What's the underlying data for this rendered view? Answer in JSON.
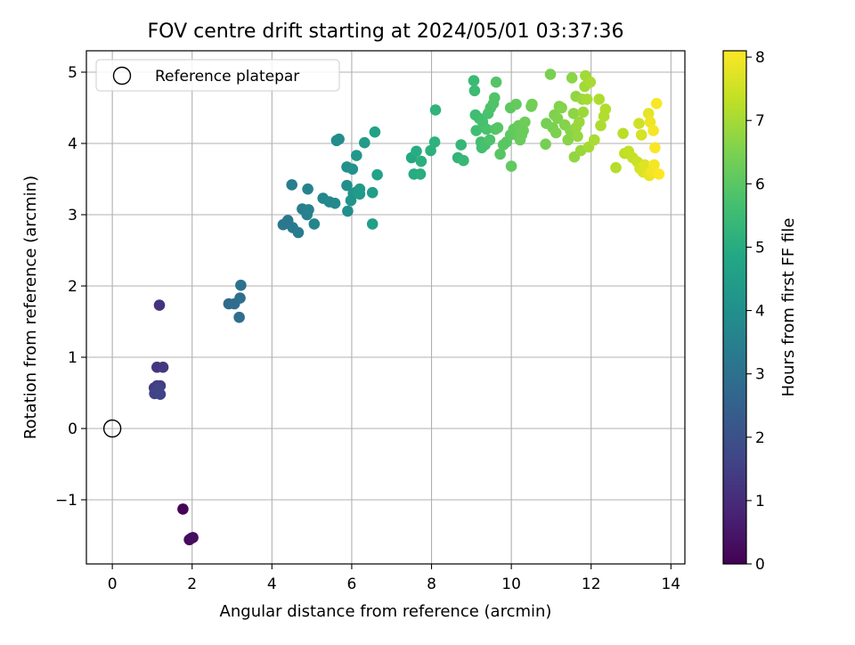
{
  "chart_data": {
    "type": "scatter",
    "title": "FOV centre drift starting at 2024/05/01 03:37:36",
    "xlabel": "Angular distance from reference (arcmin)",
    "ylabel": "Rotation from reference (arcmin)",
    "xlim": [
      -0.65,
      14.35
    ],
    "ylim": [
      -1.9,
      5.3
    ],
    "xticks": [
      0,
      2,
      4,
      6,
      8,
      10,
      12,
      14
    ],
    "xtick_labels": [
      "0",
      "2",
      "4",
      "6",
      "8",
      "10",
      "12",
      "14"
    ],
    "yticks": [
      -1,
      0,
      1,
      2,
      3,
      4,
      5
    ],
    "ytick_labels": [
      "−1",
      "0",
      "1",
      "2",
      "3",
      "4",
      "5"
    ],
    "grid": true,
    "legend": {
      "position": "top-left",
      "entries": [
        "Reference platepar"
      ]
    },
    "colorbar": {
      "label": "Hours from first FF file",
      "min": 0,
      "max": 8.1,
      "ticks": [
        0,
        1,
        2,
        3,
        4,
        5,
        6,
        7,
        8
      ],
      "tick_labels": [
        "0",
        "1",
        "2",
        "3",
        "4",
        "5",
        "6",
        "7",
        "8"
      ],
      "colormap": "viridis"
    },
    "reference_point": {
      "x": 0,
      "y": 0
    },
    "points": [
      [
        1.77,
        -1.13,
        0.1
      ],
      [
        1.93,
        -1.56,
        0.2
      ],
      [
        1.98,
        -1.54,
        0.25
      ],
      [
        2.02,
        -1.53,
        0.3
      ],
      [
        1.18,
        1.73,
        1.2
      ],
      [
        1.12,
        0.86,
        1.3
      ],
      [
        1.27,
        0.86,
        1.35
      ],
      [
        1.05,
        0.57,
        1.4
      ],
      [
        1.12,
        0.6,
        1.45
      ],
      [
        1.2,
        0.6,
        1.5
      ],
      [
        1.06,
        0.49,
        1.55
      ],
      [
        1.2,
        0.48,
        1.6
      ],
      [
        1.13,
        0.55,
        1.65
      ],
      [
        2.92,
        1.75,
        2.8
      ],
      [
        3.06,
        1.75,
        2.85
      ],
      [
        3.18,
        1.56,
        2.9
      ],
      [
        3.2,
        1.83,
        2.95
      ],
      [
        3.22,
        2.01,
        3.0
      ],
      [
        4.28,
        2.86,
        3.2
      ],
      [
        4.4,
        2.92,
        3.25
      ],
      [
        4.52,
        2.82,
        3.3
      ],
      [
        4.66,
        2.75,
        3.35
      ],
      [
        4.5,
        3.42,
        3.4
      ],
      [
        4.76,
        3.08,
        3.45
      ],
      [
        4.88,
        3.0,
        3.5
      ],
      [
        4.92,
        3.07,
        3.55
      ],
      [
        4.9,
        3.36,
        3.6
      ],
      [
        5.06,
        2.87,
        3.65
      ],
      [
        5.28,
        3.23,
        3.7
      ],
      [
        5.44,
        3.18,
        3.75
      ],
      [
        5.58,
        3.16,
        3.8
      ],
      [
        5.62,
        4.04,
        3.85
      ],
      [
        5.68,
        4.06,
        3.9
      ],
      [
        5.88,
        3.41,
        3.95
      ],
      [
        5.9,
        3.05,
        4.0
      ],
      [
        5.88,
        3.67,
        4.05
      ],
      [
        6.02,
        3.64,
        4.1
      ],
      [
        5.98,
        3.2,
        4.15
      ],
      [
        6.04,
        3.3,
        4.2
      ],
      [
        6.12,
        3.32,
        4.25
      ],
      [
        6.12,
        3.83,
        4.3
      ],
      [
        6.2,
        3.36,
        4.35
      ],
      [
        6.2,
        3.29,
        4.4
      ],
      [
        6.32,
        4.01,
        4.45
      ],
      [
        6.52,
        3.31,
        4.5
      ],
      [
        6.52,
        2.87,
        4.55
      ],
      [
        6.58,
        4.16,
        4.6
      ],
      [
        6.64,
        3.56,
        4.65
      ],
      [
        7.5,
        3.8,
        4.9
      ],
      [
        7.56,
        3.57,
        4.95
      ],
      [
        7.62,
        3.89,
        5.0
      ],
      [
        7.72,
        3.57,
        5.05
      ],
      [
        7.74,
        3.75,
        5.1
      ],
      [
        7.98,
        3.9,
        5.15
      ],
      [
        8.08,
        4.02,
        5.2
      ],
      [
        8.1,
        4.47,
        5.25
      ],
      [
        8.66,
        3.8,
        5.3
      ],
      [
        8.74,
        3.98,
        5.35
      ],
      [
        8.8,
        3.76,
        5.4
      ],
      [
        9.06,
        4.88,
        5.45
      ],
      [
        9.08,
        4.74,
        5.5
      ],
      [
        9.1,
        4.4,
        5.55
      ],
      [
        9.12,
        4.18,
        5.6
      ],
      [
        9.2,
        4.35,
        5.6
      ],
      [
        9.24,
        4.02,
        5.65
      ],
      [
        9.26,
        3.94,
        5.65
      ],
      [
        9.28,
        4.3,
        5.7
      ],
      [
        9.34,
        3.98,
        5.7
      ],
      [
        9.38,
        4.2,
        5.75
      ],
      [
        9.42,
        4.42,
        5.75
      ],
      [
        9.46,
        4.05,
        5.8
      ],
      [
        9.48,
        4.5,
        5.8
      ],
      [
        9.55,
        4.56,
        5.85
      ],
      [
        9.58,
        4.64,
        5.85
      ],
      [
        9.6,
        4.2,
        5.9
      ],
      [
        9.62,
        4.86,
        5.9
      ],
      [
        9.66,
        4.22,
        5.95
      ],
      [
        9.72,
        3.85,
        5.95
      ],
      [
        9.8,
        3.98,
        6.0
      ],
      [
        9.88,
        4.02,
        6.0
      ],
      [
        9.98,
        4.12,
        6.05
      ],
      [
        9.98,
        4.5,
        6.05
      ],
      [
        10.0,
        3.68,
        6.1
      ],
      [
        10.06,
        4.2,
        6.1
      ],
      [
        10.12,
        4.55,
        6.15
      ],
      [
        10.14,
        4.12,
        6.15
      ],
      [
        10.18,
        4.25,
        6.2
      ],
      [
        10.22,
        4.05,
        6.2
      ],
      [
        10.26,
        4.12,
        6.25
      ],
      [
        10.3,
        4.18,
        6.25
      ],
      [
        10.34,
        4.3,
        6.3
      ],
      [
        10.5,
        4.52,
        6.3
      ],
      [
        10.52,
        4.55,
        6.35
      ],
      [
        10.86,
        3.99,
        6.4
      ],
      [
        10.88,
        4.28,
        6.4
      ],
      [
        10.98,
        4.97,
        6.45
      ],
      [
        11.04,
        4.22,
        6.45
      ],
      [
        11.08,
        4.4,
        6.5
      ],
      [
        11.12,
        4.15,
        6.5
      ],
      [
        11.16,
        4.35,
        6.55
      ],
      [
        11.2,
        4.52,
        6.55
      ],
      [
        11.26,
        4.5,
        6.6
      ],
      [
        11.34,
        4.26,
        6.6
      ],
      [
        11.42,
        4.05,
        6.65
      ],
      [
        11.48,
        4.18,
        6.65
      ],
      [
        11.52,
        4.92,
        6.7
      ],
      [
        11.56,
        4.42,
        6.7
      ],
      [
        11.58,
        3.81,
        6.75
      ],
      [
        11.62,
        4.66,
        6.75
      ],
      [
        11.62,
        4.22,
        6.8
      ],
      [
        11.66,
        4.1,
        6.8
      ],
      [
        11.7,
        4.3,
        6.85
      ],
      [
        11.74,
        3.9,
        6.85
      ],
      [
        11.78,
        4.62,
        6.9
      ],
      [
        11.8,
        4.44,
        6.9
      ],
      [
        11.84,
        4.8,
        6.95
      ],
      [
        11.86,
        4.95,
        6.95
      ],
      [
        11.9,
        4.62,
        7.0
      ],
      [
        11.94,
        3.95,
        7.0
      ],
      [
        11.98,
        4.86,
        7.05
      ],
      [
        12.08,
        4.05,
        7.05
      ],
      [
        12.2,
        4.62,
        7.1
      ],
      [
        12.24,
        4.25,
        7.1
      ],
      [
        12.32,
        4.38,
        7.15
      ],
      [
        12.36,
        4.48,
        7.15
      ],
      [
        12.62,
        3.66,
        7.2
      ],
      [
        12.8,
        4.14,
        7.25
      ],
      [
        12.84,
        3.86,
        7.3
      ],
      [
        12.94,
        3.89,
        7.35
      ],
      [
        13.04,
        3.8,
        7.4
      ],
      [
        13.16,
        3.74,
        7.45
      ],
      [
        13.2,
        4.28,
        7.5
      ],
      [
        13.22,
        3.65,
        7.55
      ],
      [
        13.26,
        4.12,
        7.6
      ],
      [
        13.3,
        3.6,
        7.65
      ],
      [
        13.34,
        3.7,
        7.7
      ],
      [
        13.4,
        3.58,
        7.75
      ],
      [
        13.44,
        4.42,
        7.8
      ],
      [
        13.46,
        3.55,
        7.85
      ],
      [
        13.48,
        4.3,
        7.9
      ],
      [
        13.52,
        3.6,
        7.95
      ],
      [
        13.56,
        4.18,
        8.0
      ],
      [
        13.58,
        3.7,
        8.0
      ],
      [
        13.6,
        3.94,
        8.05
      ],
      [
        13.64,
        4.56,
        8.05
      ],
      [
        13.7,
        3.57,
        8.1
      ]
    ]
  }
}
